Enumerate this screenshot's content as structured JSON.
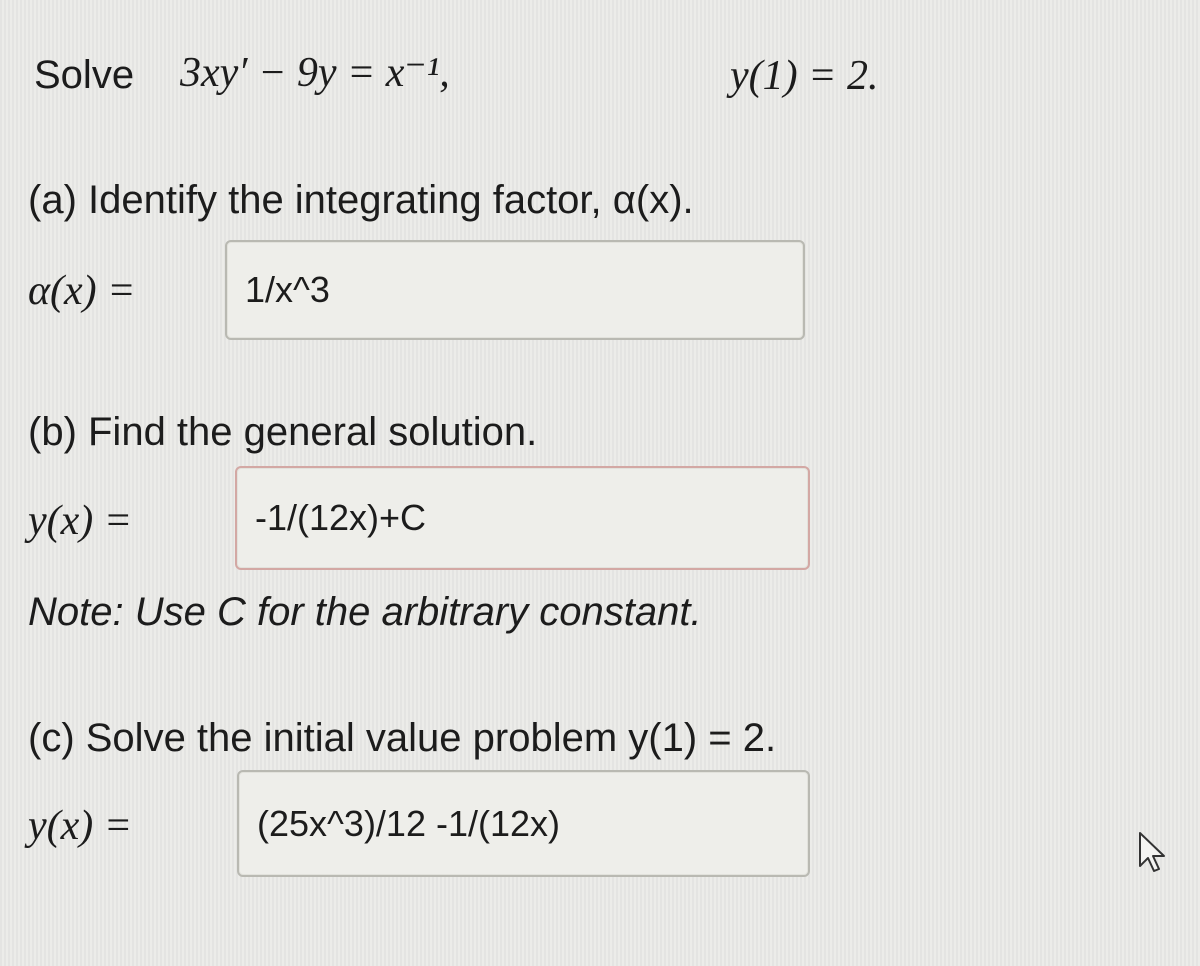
{
  "problem": {
    "prefix": "Solve",
    "equation": "3xy′ − 9y = x⁻¹,",
    "condition": "y(1) = 2."
  },
  "parts": [
    {
      "prompt": "(a) Identify the integrating factor, α(x).",
      "answer_label": "α(x) =",
      "answer": "1/x^3"
    },
    {
      "prompt": "(b) Find the general solution.",
      "answer_label": "y(x) =",
      "answer": "-1/(12x)+C",
      "note": "Note: Use C for the arbitrary constant."
    },
    {
      "prompt": "(c) Solve the initial value problem y(1) = 2.",
      "answer_label": "y(x) =",
      "answer": "(25x^3)/12 -1/(12x)"
    }
  ]
}
